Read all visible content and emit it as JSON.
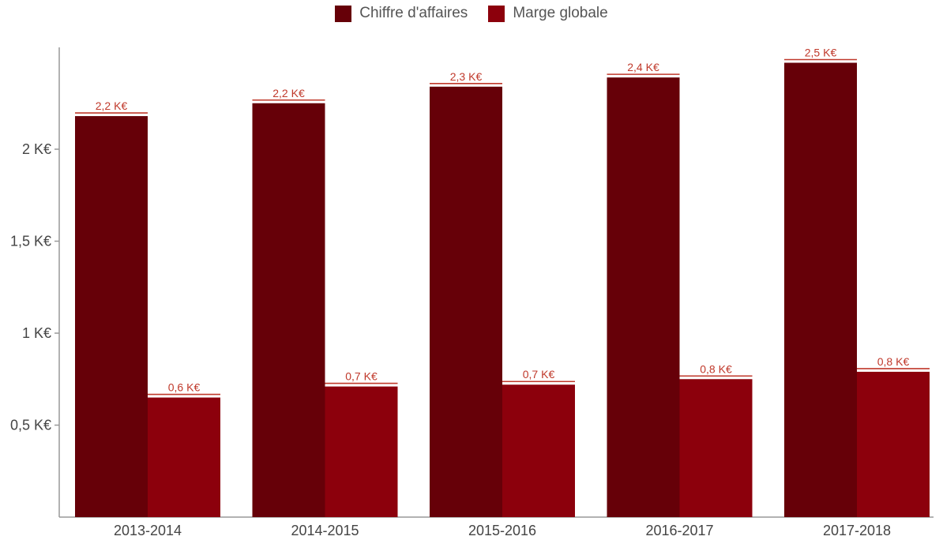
{
  "legend": {
    "items": [
      {
        "label": "Chiffre d'affaires",
        "color": "#660008"
      },
      {
        "label": "Marge globale",
        "color": "#8C000C"
      }
    ]
  },
  "colors": {
    "axis": "#999999",
    "tick_text": "#444444",
    "data_label": "#C0392B",
    "legend_text": "#555555"
  },
  "chart_data": {
    "type": "bar",
    "categories": [
      "2013-2014",
      "2014-2015",
      "2015-2016",
      "2016-2017",
      "2017-2018"
    ],
    "series": [
      {
        "name": "Chiffre d'affaires",
        "color": "#660008",
        "values": [
          2.18,
          2.25,
          2.34,
          2.39,
          2.47
        ],
        "labels": [
          "2,2 K€",
          "2,2 K€",
          "2,3 K€",
          "2,4 K€",
          "2,5 K€"
        ]
      },
      {
        "name": "Marge globale",
        "color": "#8C000C",
        "values": [
          0.65,
          0.71,
          0.72,
          0.75,
          0.79
        ],
        "labels": [
          "0,6 K€",
          "0,7 K€",
          "0,7 K€",
          "0,8 K€",
          "0,8 K€"
        ]
      }
    ],
    "y_ticks": [
      {
        "value": 0.5,
        "label": "0,5 K€"
      },
      {
        "value": 1,
        "label": "1 K€"
      },
      {
        "value": 1.5,
        "label": "1,5 K€"
      },
      {
        "value": 2,
        "label": "2 K€"
      }
    ],
    "ylim": [
      0,
      2.5
    ],
    "title": "",
    "xlabel": "",
    "ylabel": "",
    "grid": false,
    "legend_position": "top-center"
  }
}
